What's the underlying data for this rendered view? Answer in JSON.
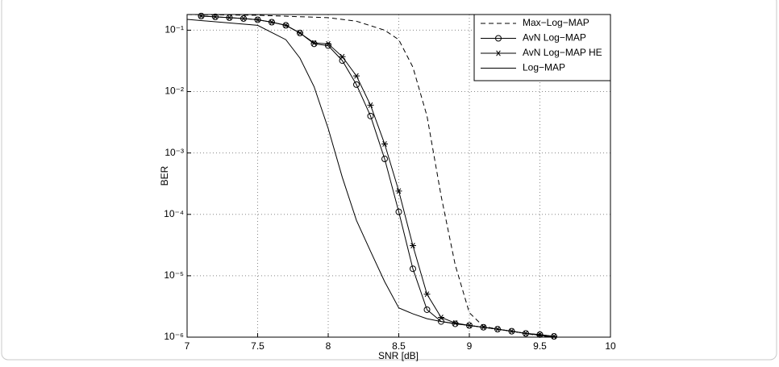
{
  "chart_data": {
    "type": "line",
    "x_label": "SNR [dB]",
    "y_label": "BER",
    "log_y": true,
    "grid": true,
    "legend": "upper right",
    "xlim": [
      7,
      10
    ],
    "xticks": [
      7,
      7.5,
      8,
      8.5,
      9,
      9.5,
      10
    ],
    "ylim": [
      1e-06,
      0.18
    ],
    "yticks": [
      {
        "value": 1e-06,
        "label": "10⁻⁶"
      },
      {
        "value": 1e-05,
        "label": "10⁻⁵"
      },
      {
        "value": 0.0001,
        "label": "10⁻⁴"
      },
      {
        "value": 0.001,
        "label": "10⁻³"
      },
      {
        "value": 0.01,
        "label": "10⁻²"
      },
      {
        "value": 0.1,
        "label": "10⁻¹"
      }
    ],
    "series": [
      {
        "name": "Max−Log−MAP",
        "color": "#000000",
        "dash": "dashed",
        "marker": "none",
        "x": [
          7,
          7.5,
          8,
          8.2,
          8.4,
          8.5,
          8.6,
          8.7,
          8.8,
          8.9,
          9,
          9.1,
          9.2,
          9.3,
          9.4,
          9.5,
          9.6
        ],
        "values": [
          0.18,
          0.175,
          0.16,
          0.14,
          0.1,
          0.07,
          0.025,
          0.004,
          0.0002,
          1.5e-05,
          2.5e-06,
          1.5e-06,
          1.35e-06,
          1.25e-06,
          1.15e-06,
          1.05e-06,
          1e-06
        ]
      },
      {
        "name": "AvN Log−MAP",
        "color": "#000000",
        "dash": "solid",
        "marker": "circle",
        "x": [
          7.1,
          7.2,
          7.3,
          7.4,
          7.5,
          7.6,
          7.7,
          7.8,
          7.9,
          8,
          8.1,
          8.2,
          8.3,
          8.4,
          8.5,
          8.6,
          8.7,
          8.8,
          8.9,
          9,
          9.1,
          9.2,
          9.3,
          9.4,
          9.5,
          9.6
        ],
        "values": [
          0.17,
          0.165,
          0.16,
          0.155,
          0.148,
          0.135,
          0.12,
          0.09,
          0.06,
          0.056,
          0.032,
          0.013,
          0.004,
          0.0008,
          0.00011,
          1.3e-05,
          2.8e-06,
          1.8e-06,
          1.65e-06,
          1.55e-06,
          1.45e-06,
          1.35e-06,
          1.25e-06,
          1.15e-06,
          1.1e-06,
          1.03e-06
        ]
      },
      {
        "name": "AvN Log−MAP HE",
        "color": "#000000",
        "dash": "solid",
        "marker": "star",
        "x": [
          7.1,
          7.2,
          7.3,
          7.4,
          7.5,
          7.6,
          7.7,
          7.8,
          7.9,
          8,
          8.1,
          8.2,
          8.3,
          8.4,
          8.5,
          8.6,
          8.7,
          8.8,
          8.9,
          9,
          9.1,
          9.2,
          9.3,
          9.4,
          9.5,
          9.6
        ],
        "values": [
          0.17,
          0.165,
          0.16,
          0.155,
          0.148,
          0.135,
          0.12,
          0.09,
          0.062,
          0.06,
          0.037,
          0.018,
          0.006,
          0.0014,
          0.00024,
          3.1e-05,
          5e-06,
          2.1e-06,
          1.7e-06,
          1.55e-06,
          1.45e-06,
          1.35e-06,
          1.25e-06,
          1.15e-06,
          1.1e-06,
          1.03e-06
        ]
      },
      {
        "name": "Log−MAP",
        "color": "#000000",
        "dash": "solid",
        "marker": "none",
        "x": [
          7,
          7.5,
          7.7,
          7.8,
          7.9,
          8,
          8.1,
          8.2,
          8.3,
          8.4,
          8.5,
          8.6,
          8.7,
          8.8,
          9,
          9.2,
          9.4,
          9.6
        ],
        "values": [
          0.15,
          0.12,
          0.07,
          0.035,
          0.012,
          0.0025,
          0.0004,
          8e-05,
          2.5e-05,
          8e-06,
          3e-06,
          2.4e-06,
          2e-06,
          1.8e-06,
          1.55e-06,
          1.35e-06,
          1.15e-06,
          1e-06
        ]
      }
    ]
  }
}
